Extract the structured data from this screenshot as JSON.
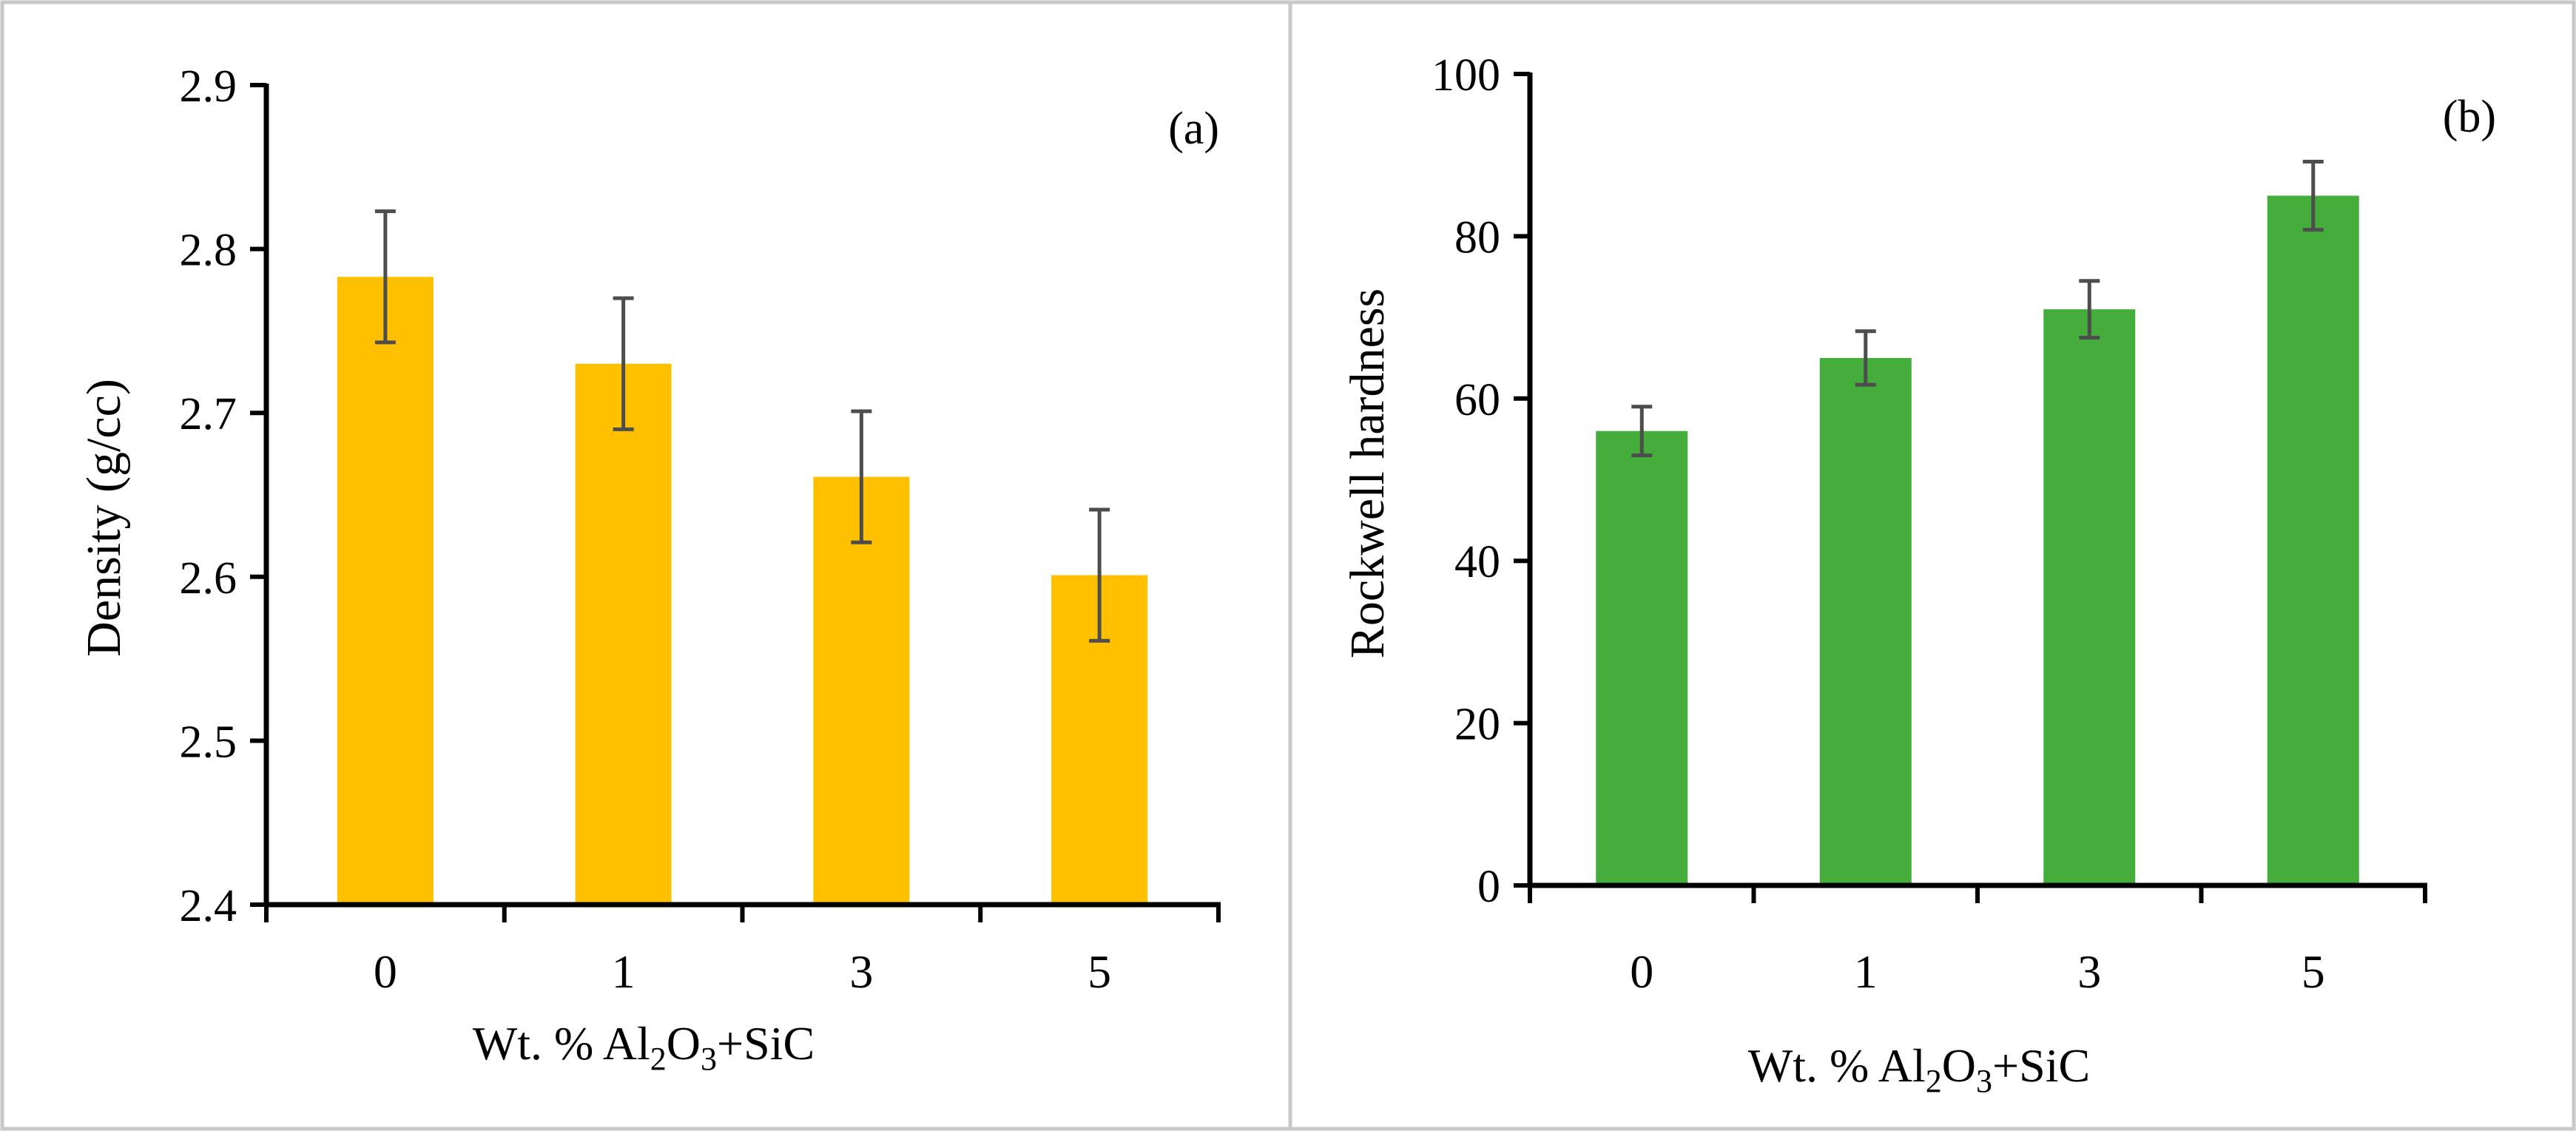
{
  "chart_data": [
    {
      "type": "bar",
      "panel_label": "(a)",
      "categories": [
        "0",
        "1",
        "3",
        "5"
      ],
      "values": [
        2.783,
        2.73,
        2.661,
        2.601
      ],
      "error": [
        0.04,
        0.04,
        0.04,
        0.04
      ],
      "ylabel": "Density (g/cc)",
      "xlabel": {
        "prefix": "Wt. % Al",
        "sub1": "2",
        "mid": "O",
        "sub2": "3",
        "suffix": "+SiC"
      },
      "ylim": [
        2.4,
        2.9
      ],
      "yticks": [
        "2.4",
        "2.5",
        "2.6",
        "2.7",
        "2.8",
        "2.9"
      ],
      "bar_color": "#FFC000",
      "grid": false,
      "legend": "none"
    },
    {
      "type": "bar",
      "panel_label": "(b)",
      "categories": [
        "0",
        "1",
        "3",
        "5"
      ],
      "values": [
        56,
        65,
        71,
        85
      ],
      "error": [
        3,
        3.3,
        3.5,
        4.2
      ],
      "ylabel": "Rockwell hardness",
      "xlabel": {
        "prefix": "Wt. % Al",
        "sub1": "2",
        "mid": "O",
        "sub2": "3",
        "suffix": "+SiC"
      },
      "ylim": [
        0,
        100
      ],
      "yticks": [
        "0",
        "20",
        "40",
        "60",
        "80",
        "100"
      ],
      "bar_color": "#44AD3C",
      "grid": false,
      "legend": "none"
    }
  ]
}
